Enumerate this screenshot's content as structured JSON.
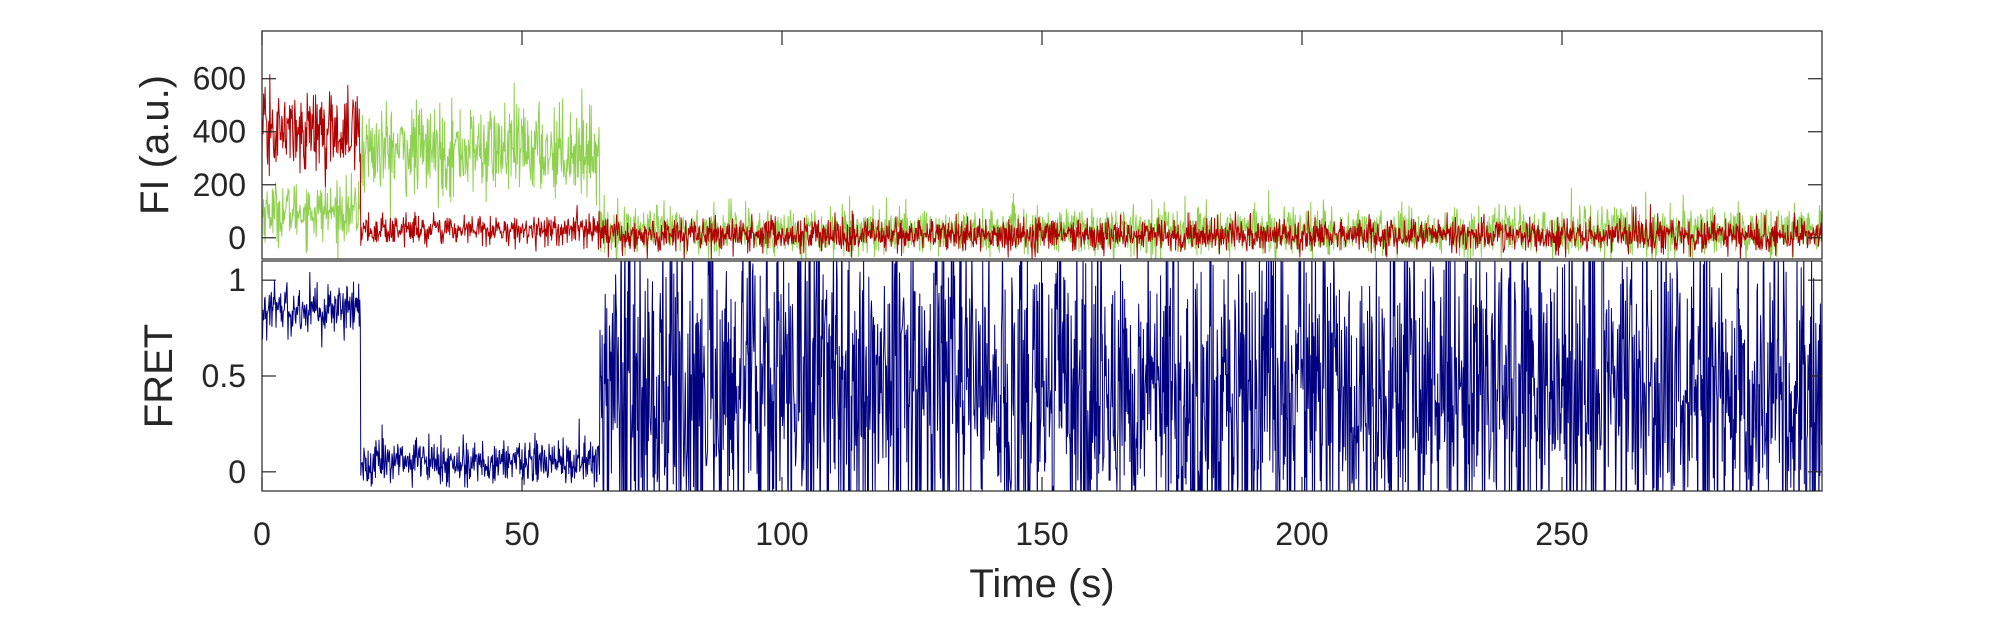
{
  "chart_data": [
    {
      "type": "line",
      "title": "",
      "xlabel": "",
      "ylabel": "FI (a.u.)",
      "xlim": [
        0,
        300
      ],
      "ylim": [
        -80,
        780
      ],
      "yticks": [
        0,
        200,
        400,
        600
      ],
      "ytick_labels": [
        "0",
        "200",
        "400",
        "600"
      ],
      "grid": false,
      "legend": "none",
      "series": [
        {
          "color": "#8fd14f",
          "segments": [
            {
              "x_start": 0,
              "x_end": 19,
              "mean": 100,
              "noise": 55
            },
            {
              "x_start": 19,
              "x_end": 65,
              "mean": 330,
              "noise": 85
            },
            {
              "x_start": 65,
              "x_end": 300,
              "mean": 25,
              "noise": 45
            }
          ]
        },
        {
          "color": "#b00000",
          "segments": [
            {
              "x_start": 0,
              "x_end": 19,
              "mean": 400,
              "noise": 75
            },
            {
              "x_start": 19,
              "x_end": 65,
              "mean": 30,
              "noise": 28
            },
            {
              "x_start": 65,
              "x_end": 300,
              "mean": 10,
              "noise": 32
            }
          ]
        }
      ]
    },
    {
      "type": "line",
      "title": "",
      "xlabel": "Time (s)",
      "ylabel": "FRET",
      "xlim": [
        0,
        300
      ],
      "ylim": [
        -0.1,
        1.1
      ],
      "xticks": [
        0,
        50,
        100,
        150,
        200,
        250
      ],
      "xtick_labels": [
        "0",
        "50",
        "100",
        "150",
        "200",
        "250"
      ],
      "yticks": [
        0,
        0.5,
        1
      ],
      "ytick_labels": [
        "0",
        "0.5",
        "1"
      ],
      "grid": false,
      "legend": "none",
      "series": [
        {
          "color": "#000080",
          "segments": [
            {
              "x_start": 0,
              "x_end": 19,
              "mean": 0.85,
              "noise": 0.07
            },
            {
              "x_start": 19,
              "x_end": 65,
              "mean": 0.05,
              "noise": 0.06
            },
            {
              "x_start": 65,
              "x_end": 300,
              "mean": 0.45,
              "noise": 0.45
            }
          ]
        }
      ]
    }
  ]
}
